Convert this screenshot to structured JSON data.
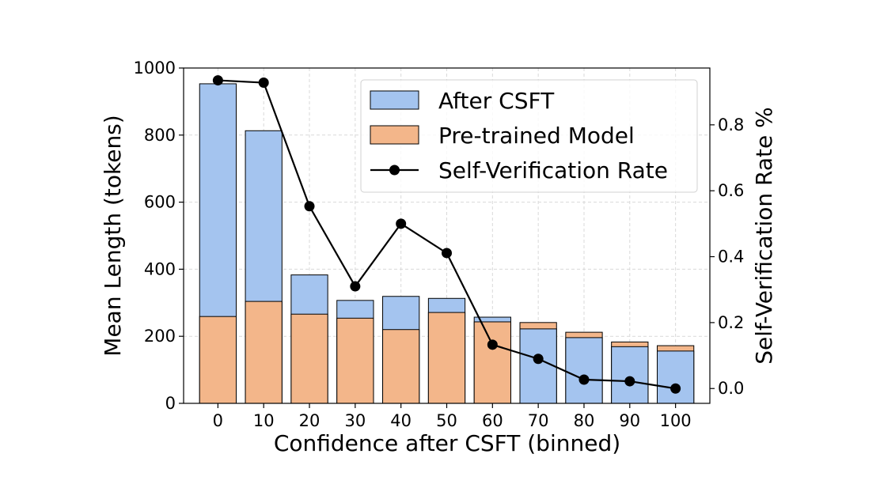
{
  "chart_data": {
    "type": "bar",
    "categories": [
      "0",
      "10",
      "20",
      "30",
      "40",
      "50",
      "60",
      "70",
      "80",
      "90",
      "100"
    ],
    "xlabel": "Confidence after CSFT (binned)",
    "ylabel": "Mean Length (tokens)",
    "y2label": "Self-Verification Rate %",
    "ylim": [
      0,
      1000
    ],
    "y2lim": [
      -0.045,
      0.9724
    ],
    "yticks": [
      "0",
      "200",
      "400",
      "600",
      "800",
      "1000"
    ],
    "y2ticks": [
      "0.0",
      "0.2",
      "0.4",
      "0.6",
      "0.8"
    ],
    "grid": true,
    "legend_position": "top-right",
    "series": [
      {
        "name": "After CSFT",
        "kind": "bar",
        "color": "#a4c4ef",
        "values": [
          953,
          813,
          383,
          307,
          319,
          313,
          257,
          222,
          196,
          169,
          156
        ]
      },
      {
        "name": "Pre-trained Model",
        "kind": "bar",
        "color": "#f3b68a",
        "values": [
          259,
          304,
          266,
          254,
          220,
          271,
          243,
          241,
          212,
          183,
          172
        ]
      },
      {
        "name": "Self-Verification Rate",
        "kind": "line",
        "axis": "right",
        "color": "#000000",
        "values": [
          0.935,
          0.928,
          0.553,
          0.31,
          0.5,
          0.411,
          0.133,
          0.09,
          0.027,
          0.022,
          0.0
        ]
      }
    ]
  }
}
